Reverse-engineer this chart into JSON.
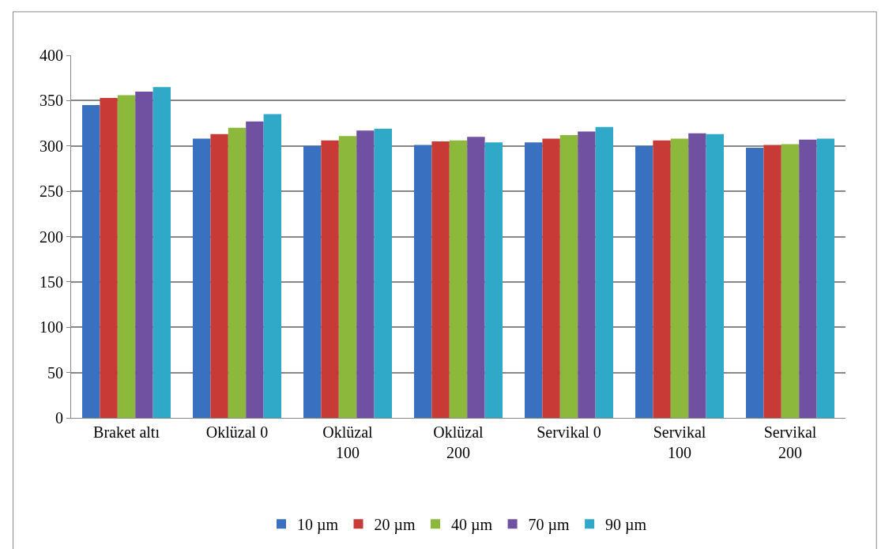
{
  "chart_data": {
    "type": "bar",
    "categories": [
      "Braket altı",
      "Oklüzal 0",
      "Oklüzal\n100",
      "Oklüzal\n200",
      "Servikal 0",
      "Servikal\n100",
      "Servikal\n200"
    ],
    "series": [
      {
        "name": "10 µm",
        "color": "#3a70c0",
        "values": [
          345,
          308,
          300,
          301,
          304,
          300,
          298
        ]
      },
      {
        "name": "20 µm",
        "color": "#c83a35",
        "values": [
          353,
          313,
          306,
          305,
          308,
          306,
          301
        ]
      },
      {
        "name": "40 µm",
        "color": "#8cb83c",
        "values": [
          356,
          320,
          311,
          306,
          312,
          308,
          302
        ]
      },
      {
        "name": "70 µm",
        "color": "#7050a0",
        "values": [
          360,
          327,
          317,
          310,
          316,
          314,
          307
        ]
      },
      {
        "name": "90 µm",
        "color": "#30a8c8",
        "values": [
          365,
          335,
          319,
          304,
          321,
          313,
          308
        ]
      }
    ],
    "ylim": [
      0,
      400
    ],
    "yticks": [
      0,
      50,
      100,
      150,
      200,
      250,
      300,
      350,
      400
    ],
    "grid": "y",
    "legend": "bottom"
  }
}
